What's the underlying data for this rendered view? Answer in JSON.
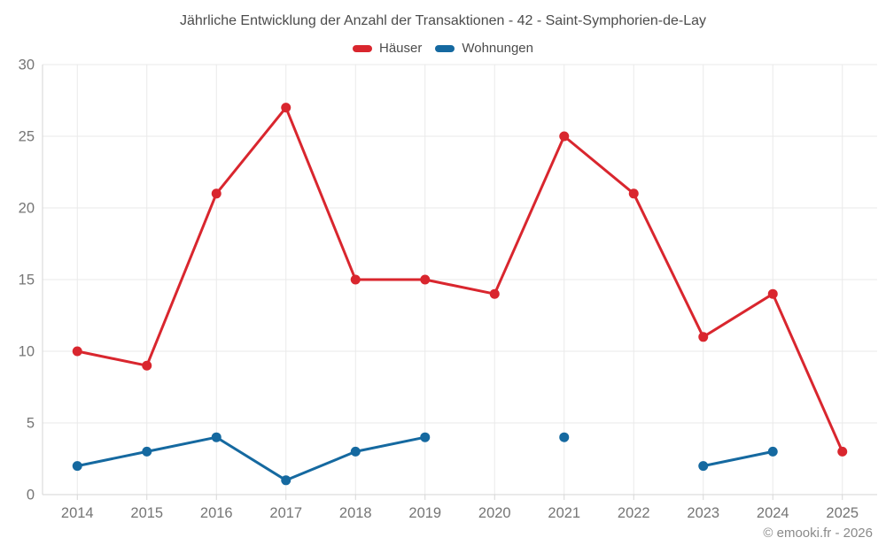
{
  "title": "Jährliche Entwicklung der Anzahl der Transaktionen - 42 - Saint-Symphorien-de-Lay",
  "copyright": "© emooki.fr - 2026",
  "colors": {
    "hauser": "#d9262e",
    "wohnungen": "#1569a0",
    "gridline": "#eaeaea",
    "axis": "#d6d6d6",
    "tick_label": "#757575",
    "title_text": "#4c4c4c",
    "copyright_text": "#8a8a8a"
  },
  "chart_data": {
    "type": "line",
    "title": "Jährliche Entwicklung der Anzahl der Transaktionen - 42 - Saint-Symphorien-de-Lay",
    "categories": [
      "2014",
      "2015",
      "2016",
      "2017",
      "2018",
      "2019",
      "2020",
      "2021",
      "2022",
      "2023",
      "2024",
      "2025"
    ],
    "series": [
      {
        "name": "Häuser",
        "color": "#d9262e",
        "values": [
          10,
          9,
          21,
          27,
          15,
          15,
          14,
          25,
          21,
          11,
          14,
          3
        ]
      },
      {
        "name": "Wohnungen",
        "color": "#1569a0",
        "values": [
          2,
          3,
          4,
          1,
          3,
          4,
          null,
          4,
          null,
          2,
          3,
          null
        ]
      }
    ],
    "xlabel": "",
    "ylabel": "",
    "ylim": [
      0,
      30
    ],
    "yticks": [
      0,
      5,
      10,
      15,
      20,
      25,
      30
    ],
    "grid": true,
    "legend_position": "top"
  }
}
